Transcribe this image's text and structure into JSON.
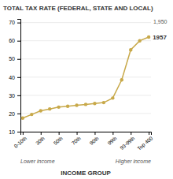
{
  "chart_data": {
    "type": "line",
    "title": "TOTAL TAX RATE (FEDERAL, STATE AND LOCAL)",
    "xlabel": "INCOME GROUP",
    "annotations": [
      "1957",
      "1,950",
      "Lower income",
      "Higher income"
    ],
    "categories": [
      "0-10th",
      null,
      "30th",
      null,
      "50th",
      null,
      "70th",
      null,
      "90th",
      null,
      "99th",
      null,
      "93-99th",
      null,
      "Top 400"
    ],
    "values": [
      17.5,
      19.5,
      21.5,
      22.5,
      23.5,
      24.0,
      24.5,
      25.0,
      25.5,
      26.0,
      28.5,
      38.5,
      55.0,
      60.0,
      62.0
    ],
    "color": "#c8a94a",
    "marker": "circle",
    "ylim": [
      10,
      72
    ],
    "yticks": [
      10,
      20,
      30,
      40,
      50,
      60,
      70
    ],
    "grid": true
  }
}
